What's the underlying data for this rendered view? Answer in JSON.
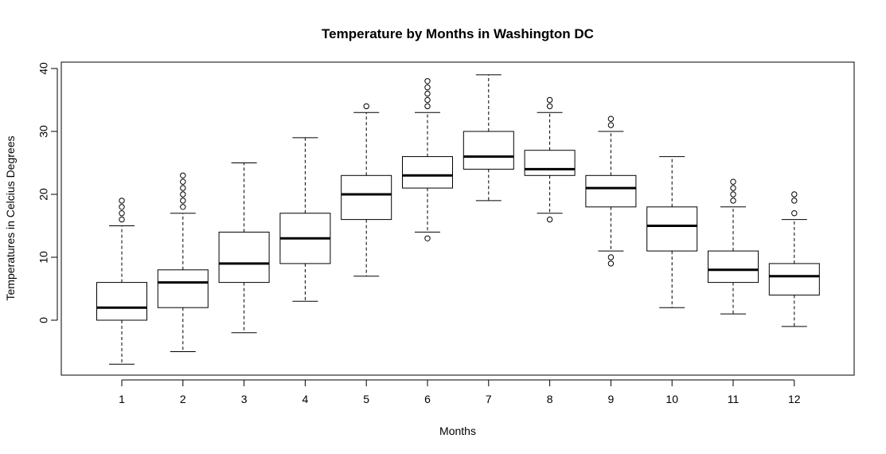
{
  "chart_data": {
    "type": "boxplot",
    "title": "Temperature by Months in Washington DC",
    "xlabel": "Months",
    "ylabel": "Temperatures in Celcius Degrees",
    "ylim": [
      -9,
      40.5
    ],
    "yticks": [
      0,
      10,
      20,
      30,
      40
    ],
    "grid": false,
    "categories": [
      "1",
      "2",
      "3",
      "4",
      "5",
      "6",
      "7",
      "8",
      "9",
      "10",
      "11",
      "12"
    ],
    "boxes": [
      {
        "whisker_low": -7,
        "q1": 0,
        "median": 2,
        "q3": 6,
        "whisker_high": 15,
        "outliers": [
          16,
          17,
          18,
          19
        ]
      },
      {
        "whisker_low": -5,
        "q1": 2,
        "median": 6,
        "q3": 8,
        "whisker_high": 17,
        "outliers": [
          18,
          19,
          20,
          21,
          22,
          23
        ]
      },
      {
        "whisker_low": -2,
        "q1": 6,
        "median": 9,
        "q3": 14,
        "whisker_high": 25,
        "outliers": []
      },
      {
        "whisker_low": 3,
        "q1": 9,
        "median": 13,
        "q3": 17,
        "whisker_high": 29,
        "outliers": []
      },
      {
        "whisker_low": 7,
        "q1": 16,
        "median": 20,
        "q3": 23,
        "whisker_high": 33,
        "outliers": [
          34
        ]
      },
      {
        "whisker_low": 14,
        "q1": 21,
        "median": 23,
        "q3": 26,
        "whisker_high": 33,
        "outliers": [
          13,
          34,
          35,
          36,
          37,
          38
        ]
      },
      {
        "whisker_low": 19,
        "q1": 24,
        "median": 26,
        "q3": 30,
        "whisker_high": 39,
        "outliers": []
      },
      {
        "whisker_low": 17,
        "q1": 23,
        "median": 24,
        "q3": 27,
        "whisker_high": 33,
        "outliers": [
          16,
          34,
          35
        ]
      },
      {
        "whisker_low": 11,
        "q1": 18,
        "median": 21,
        "q3": 23,
        "whisker_high": 30,
        "outliers": [
          9,
          10,
          31,
          32
        ]
      },
      {
        "whisker_low": 2,
        "q1": 11,
        "median": 15,
        "q3": 18,
        "whisker_high": 26,
        "outliers": []
      },
      {
        "whisker_low": 1,
        "q1": 6,
        "median": 8,
        "q3": 11,
        "whisker_high": 18,
        "outliers": [
          19,
          20,
          21,
          22
        ]
      },
      {
        "whisker_low": -1,
        "q1": 4,
        "median": 7,
        "q3": 9,
        "whisker_high": 16,
        "outliers": [
          17,
          19,
          20
        ]
      }
    ]
  }
}
